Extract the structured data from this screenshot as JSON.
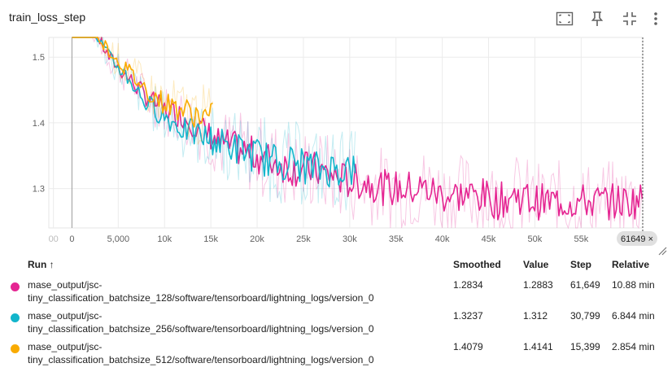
{
  "card": {
    "title": "train_loss_step",
    "tools": [
      {
        "name": "fit-domain-icon"
      },
      {
        "name": "pin-icon"
      },
      {
        "name": "collapse-icon"
      },
      {
        "name": "more-vert-icon"
      }
    ]
  },
  "chart_data": {
    "type": "line",
    "title": "train_loss_step",
    "xlabel": "",
    "ylabel": "",
    "x_ticks": [
      "00",
      "0",
      "5,000",
      "10k",
      "15k",
      "20k",
      "25k",
      "30k",
      "35k",
      "40k",
      "45k",
      "50k",
      "55k"
    ],
    "x_tick_values": [
      -2000,
      0,
      5000,
      10000,
      15000,
      20000,
      25000,
      30000,
      35000,
      40000,
      45000,
      50000,
      55000
    ],
    "y_ticks": [
      "1.5",
      "1.4",
      "1.3"
    ],
    "y_tick_values": [
      1.5,
      1.4,
      1.3
    ],
    "xlim": [
      -2500,
      61649
    ],
    "ylim": [
      1.24,
      1.53
    ],
    "grid": true,
    "cursor_step": "61649",
    "cursor_label": "61649 ×",
    "series": [
      {
        "name": "mase_output/jsc-tiny_classification_batchsize_128/software/tensorboard/lightning_logs/version_0",
        "color": "#e52592",
        "x": [
          0,
          2000,
          4000,
          6000,
          8000,
          10000,
          12000,
          14000,
          16000,
          18000,
          20000,
          22000,
          24000,
          26000,
          28000,
          30000,
          32000,
          34000,
          36000,
          38000,
          40000,
          42000,
          44000,
          46000,
          48000,
          50000,
          52000,
          54000,
          56000,
          58000,
          60000,
          61649
        ],
        "values": [
          1.59,
          1.55,
          1.5,
          1.47,
          1.44,
          1.42,
          1.41,
          1.39,
          1.37,
          1.36,
          1.35,
          1.34,
          1.33,
          1.33,
          1.32,
          1.31,
          1.31,
          1.3,
          1.3,
          1.3,
          1.29,
          1.29,
          1.29,
          1.28,
          1.29,
          1.28,
          1.28,
          1.28,
          1.28,
          1.28,
          1.28,
          1.2834
        ]
      },
      {
        "name": "mase_output/jsc-tiny_classification_batchsize_256/software/tensorboard/lightning_logs/version_0",
        "color": "#12b5cb",
        "x": [
          0,
          2000,
          4000,
          6000,
          8000,
          10000,
          12000,
          14000,
          16000,
          18000,
          20000,
          22000,
          24000,
          26000,
          28000,
          30000,
          30799
        ],
        "values": [
          1.59,
          1.55,
          1.5,
          1.47,
          1.43,
          1.41,
          1.39,
          1.38,
          1.37,
          1.36,
          1.35,
          1.34,
          1.34,
          1.33,
          1.33,
          1.33,
          1.3237
        ]
      },
      {
        "name": "mase_output/jsc-tiny_classification_batchsize_512/software/tensorboard/lightning_logs/version_0",
        "color": "#f9ab00",
        "x": [
          0,
          2000,
          4000,
          6000,
          8000,
          10000,
          12000,
          14000,
          15399
        ],
        "values": [
          1.59,
          1.55,
          1.51,
          1.48,
          1.45,
          1.43,
          1.42,
          1.41,
          1.4079
        ]
      }
    ]
  },
  "table": {
    "headers": {
      "run": "Run ↑",
      "smoothed": "Smoothed",
      "value": "Value",
      "step": "Step",
      "relative": "Relative"
    },
    "rows": [
      {
        "color": "#e52592",
        "line1": "mase_output/jsc-",
        "line2": "tiny_classification_batchsize_128/software/tensorboard/lightning_logs/version_0",
        "smoothed": "1.2834",
        "value": "1.2883",
        "step": "61,649",
        "relative": "10.88 min"
      },
      {
        "color": "#12b5cb",
        "line1": "mase_output/jsc-",
        "line2": "tiny_classification_batchsize_256/software/tensorboard/lightning_logs/version_0",
        "smoothed": "1.3237",
        "value": "1.312",
        "step": "30,799",
        "relative": "6.844 min"
      },
      {
        "color": "#f9ab00",
        "line1": "mase_output/jsc-",
        "line2": "tiny_classification_batchsize_512/software/tensorboard/lightning_logs/version_0",
        "smoothed": "1.4079",
        "value": "1.4141",
        "step": "15,399",
        "relative": "2.854 min"
      }
    ]
  }
}
